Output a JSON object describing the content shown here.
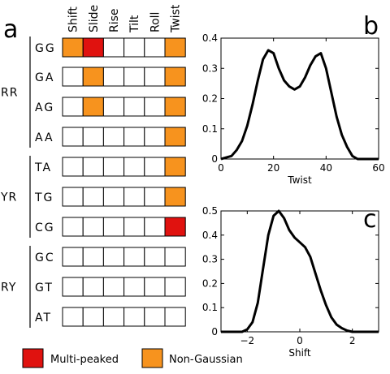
{
  "panels": {
    "a": "a",
    "b": "b",
    "c": "c"
  },
  "legend": [
    {
      "key": "multi",
      "label": "Multi-peaked",
      "color": "#e0120f"
    },
    {
      "key": "nongauss",
      "label": "Non-Gaussian",
      "color": "#f7931e"
    }
  ],
  "chart_data": [
    {
      "type": "heatmap",
      "columns": [
        "Shift",
        "Slide",
        "Rise",
        "Tilt",
        "Roll",
        "Twist"
      ],
      "groups": [
        {
          "label": "RR",
          "rows": [
            "GG",
            "GA",
            "AG",
            "AA"
          ]
        },
        {
          "label": "YR",
          "rows": [
            "TA",
            "TG",
            "CG"
          ]
        },
        {
          "label": "RY",
          "rows": [
            "GC",
            "GT",
            "AT"
          ]
        }
      ],
      "cells": {
        "GG": [
          "nongauss",
          "multi",
          "",
          "",
          "",
          "nongauss"
        ],
        "GA": [
          "",
          "nongauss",
          "",
          "",
          "",
          "nongauss"
        ],
        "AG": [
          "",
          "nongauss",
          "",
          "",
          "",
          "nongauss"
        ],
        "AA": [
          "",
          "",
          "",
          "",
          "",
          "nongauss"
        ],
        "TA": [
          "",
          "",
          "",
          "",
          "",
          "nongauss"
        ],
        "TG": [
          "",
          "",
          "",
          "",
          "",
          "nongauss"
        ],
        "CG": [
          "",
          "",
          "",
          "",
          "",
          "multi"
        ],
        "GC": [
          "",
          "",
          "",
          "",
          "",
          ""
        ],
        "GT": [
          "",
          "",
          "",
          "",
          "",
          ""
        ],
        "AT": [
          "",
          "",
          "",
          "",
          "",
          ""
        ]
      }
    },
    {
      "type": "line",
      "xlabel": "Twist",
      "xlim": [
        0,
        60
      ],
      "ylim": [
        0,
        0.4
      ],
      "xticks": [
        0,
        20,
        40,
        60
      ],
      "yticks": [
        0,
        0.1,
        0.2,
        0.3,
        0.4
      ],
      "ytick_labels": [
        "0",
        "0.1",
        "0.2",
        "0.3",
        "0.4"
      ],
      "x": [
        0,
        2,
        4,
        6,
        8,
        10,
        12,
        14,
        16,
        18,
        20,
        22,
        24,
        26,
        28,
        30,
        32,
        34,
        36,
        38,
        40,
        42,
        44,
        46,
        48,
        50,
        52,
        54,
        56,
        58,
        60
      ],
      "y": [
        0,
        0.005,
        0.01,
        0.03,
        0.06,
        0.11,
        0.18,
        0.26,
        0.33,
        0.36,
        0.35,
        0.3,
        0.26,
        0.24,
        0.23,
        0.24,
        0.27,
        0.31,
        0.34,
        0.35,
        0.3,
        0.22,
        0.14,
        0.08,
        0.04,
        0.01,
        0,
        0,
        0,
        0,
        0
      ]
    },
    {
      "type": "line",
      "xlabel": "Shift",
      "xlim": [
        -3,
        3
      ],
      "ylim": [
        0,
        0.5
      ],
      "xticks": [
        -2,
        0,
        2
      ],
      "xtick_labels": [
        "−2",
        "0",
        "2"
      ],
      "yticks": [
        0,
        0.1,
        0.2,
        0.3,
        0.4,
        0.5
      ],
      "ytick_labels": [
        "0",
        "0.1",
        "0.2",
        "0.3",
        "0.4",
        "0.5"
      ],
      "x": [
        -3,
        -2.6,
        -2.2,
        -2,
        -1.8,
        -1.6,
        -1.4,
        -1.2,
        -1,
        -0.8,
        -0.6,
        -0.4,
        -0.2,
        0,
        0.2,
        0.4,
        0.6,
        0.8,
        1,
        1.2,
        1.4,
        1.6,
        1.8,
        2,
        2.2,
        2.6,
        3
      ],
      "y": [
        0,
        0,
        0,
        0.01,
        0.04,
        0.12,
        0.26,
        0.4,
        0.48,
        0.5,
        0.47,
        0.42,
        0.39,
        0.37,
        0.35,
        0.31,
        0.24,
        0.17,
        0.11,
        0.06,
        0.03,
        0.015,
        0.005,
        0,
        0,
        0,
        0
      ]
    }
  ]
}
